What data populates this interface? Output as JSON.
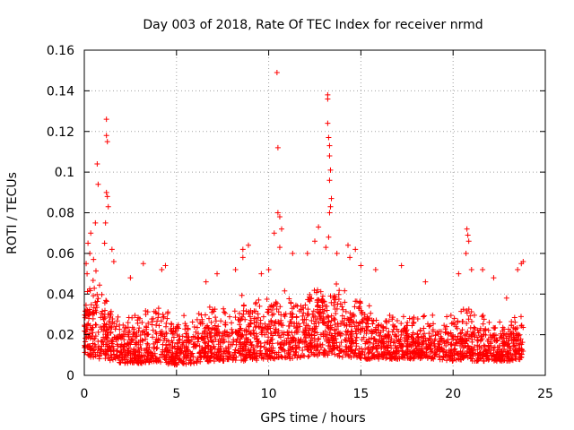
{
  "chart_data": {
    "type": "scatter",
    "title": "Day 003 of 2018, Rate Of TEC Index for receiver nrmd",
    "xlabel": "GPS time / hours",
    "ylabel": "ROTI / TECUs",
    "xlim": [
      0,
      25
    ],
    "ylim": [
      0,
      0.16
    ],
    "x_ticks": [
      0,
      5,
      10,
      15,
      20,
      25
    ],
    "x_tick_labels": [
      "0",
      "5",
      "10",
      "15",
      "20",
      "25"
    ],
    "y_ticks": [
      0,
      0.02,
      0.04,
      0.06,
      0.08,
      0.1,
      0.12,
      0.14,
      0.16
    ],
    "y_tick_labels": [
      "0",
      "0.02",
      "0.04",
      "0.06",
      "0.08",
      "0.1",
      "0.12",
      "0.14",
      "0.16"
    ],
    "grid": true,
    "marker": "+",
    "marker_color": "#ff0000",
    "series": [
      {
        "name": "ROTI",
        "description_note": "dense cloud of ROTI samples across the day",
        "band": [
          {
            "x": 0.0,
            "low": 0.01,
            "high": 0.04
          },
          {
            "x": 0.5,
            "low": 0.008,
            "high": 0.05
          },
          {
            "x": 1.0,
            "low": 0.008,
            "high": 0.045
          },
          {
            "x": 2.0,
            "low": 0.006,
            "high": 0.03
          },
          {
            "x": 3.0,
            "low": 0.006,
            "high": 0.032
          },
          {
            "x": 4.0,
            "low": 0.006,
            "high": 0.036
          },
          {
            "x": 5.0,
            "low": 0.005,
            "high": 0.03
          },
          {
            "x": 6.0,
            "low": 0.006,
            "high": 0.032
          },
          {
            "x": 7.0,
            "low": 0.007,
            "high": 0.035
          },
          {
            "x": 8.0,
            "low": 0.007,
            "high": 0.035
          },
          {
            "x": 9.0,
            "low": 0.007,
            "high": 0.038
          },
          {
            "x": 10.0,
            "low": 0.008,
            "high": 0.038
          },
          {
            "x": 11.0,
            "low": 0.008,
            "high": 0.04
          },
          {
            "x": 12.0,
            "low": 0.009,
            "high": 0.045
          },
          {
            "x": 13.0,
            "low": 0.01,
            "high": 0.048
          },
          {
            "x": 14.0,
            "low": 0.009,
            "high": 0.042
          },
          {
            "x": 15.0,
            "low": 0.008,
            "high": 0.04
          },
          {
            "x": 16.0,
            "low": 0.008,
            "high": 0.032
          },
          {
            "x": 17.0,
            "low": 0.008,
            "high": 0.03
          },
          {
            "x": 18.0,
            "low": 0.008,
            "high": 0.03
          },
          {
            "x": 19.0,
            "low": 0.008,
            "high": 0.028
          },
          {
            "x": 20.0,
            "low": 0.007,
            "high": 0.03
          },
          {
            "x": 21.0,
            "low": 0.007,
            "high": 0.035
          },
          {
            "x": 22.0,
            "low": 0.007,
            "high": 0.028
          },
          {
            "x": 23.0,
            "low": 0.007,
            "high": 0.028
          },
          {
            "x": 23.8,
            "low": 0.008,
            "high": 0.03
          }
        ],
        "outliers": [
          [
            0.2,
            0.065
          ],
          [
            0.3,
            0.06
          ],
          [
            0.35,
            0.07
          ],
          [
            0.5,
            0.057
          ],
          [
            0.6,
            0.075
          ],
          [
            0.7,
            0.104
          ],
          [
            0.75,
            0.094
          ],
          [
            1.2,
            0.126
          ],
          [
            1.2,
            0.118
          ],
          [
            1.25,
            0.115
          ],
          [
            1.2,
            0.09
          ],
          [
            1.25,
            0.088
          ],
          [
            1.3,
            0.083
          ],
          [
            1.15,
            0.075
          ],
          [
            1.1,
            0.065
          ],
          [
            1.5,
            0.062
          ],
          [
            1.6,
            0.056
          ],
          [
            2.5,
            0.048
          ],
          [
            3.2,
            0.055
          ],
          [
            4.2,
            0.052
          ],
          [
            4.4,
            0.054
          ],
          [
            6.6,
            0.046
          ],
          [
            7.2,
            0.05
          ],
          [
            8.2,
            0.052
          ],
          [
            8.6,
            0.062
          ],
          [
            8.6,
            0.058
          ],
          [
            8.9,
            0.064
          ],
          [
            9.6,
            0.05
          ],
          [
            10.0,
            0.052
          ],
          [
            10.3,
            0.07
          ],
          [
            10.45,
            0.149
          ],
          [
            10.5,
            0.112
          ],
          [
            10.5,
            0.08
          ],
          [
            10.6,
            0.078
          ],
          [
            10.7,
            0.072
          ],
          [
            10.6,
            0.063
          ],
          [
            11.3,
            0.06
          ],
          [
            12.1,
            0.06
          ],
          [
            12.5,
            0.066
          ],
          [
            12.7,
            0.073
          ],
          [
            13.2,
            0.138
          ],
          [
            13.2,
            0.136
          ],
          [
            13.2,
            0.124
          ],
          [
            13.25,
            0.117
          ],
          [
            13.3,
            0.113
          ],
          [
            13.3,
            0.108
          ],
          [
            13.35,
            0.101
          ],
          [
            13.3,
            0.096
          ],
          [
            13.4,
            0.087
          ],
          [
            13.35,
            0.083
          ],
          [
            13.3,
            0.08
          ],
          [
            13.25,
            0.068
          ],
          [
            13.1,
            0.063
          ],
          [
            13.7,
            0.06
          ],
          [
            14.3,
            0.064
          ],
          [
            14.4,
            0.058
          ],
          [
            14.7,
            0.062
          ],
          [
            15.0,
            0.054
          ],
          [
            15.8,
            0.052
          ],
          [
            17.2,
            0.054
          ],
          [
            18.5,
            0.046
          ],
          [
            20.3,
            0.05
          ],
          [
            20.75,
            0.072
          ],
          [
            20.8,
            0.069
          ],
          [
            20.85,
            0.066
          ],
          [
            20.7,
            0.06
          ],
          [
            21.0,
            0.052
          ],
          [
            21.6,
            0.052
          ],
          [
            22.2,
            0.048
          ],
          [
            23.5,
            0.052
          ],
          [
            23.7,
            0.055
          ],
          [
            23.8,
            0.056
          ],
          [
            22.9,
            0.038
          ],
          [
            0.1,
            0.055
          ],
          [
            0.15,
            0.05
          ]
        ]
      }
    ]
  }
}
